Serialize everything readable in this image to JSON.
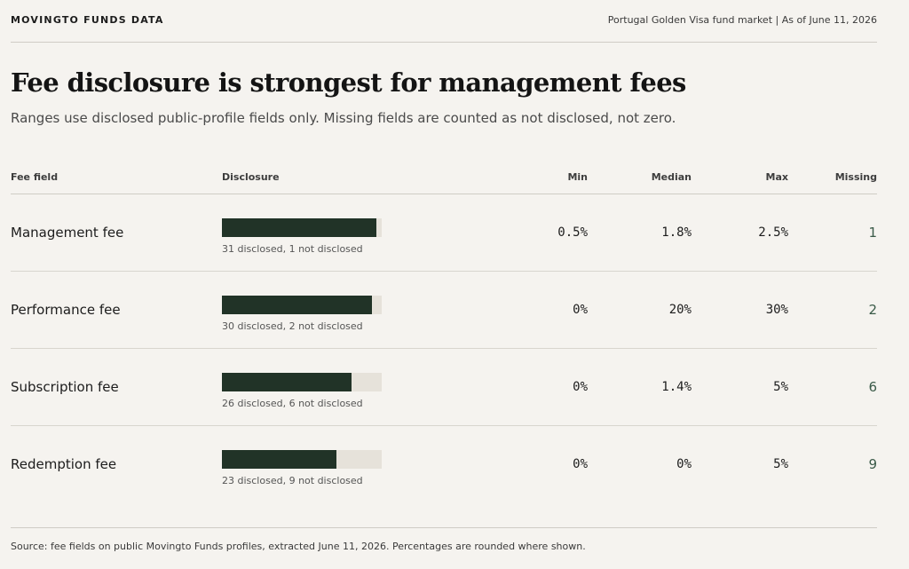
{
  "header": {
    "brand": "MOVINGTO FUNDS DATA",
    "meta": "Portugal Golden Visa fund market | As of June 11, 2026"
  },
  "title": "Fee disclosure is strongest for management fees",
  "subtitle": "Ranges use disclosed public-profile fields only. Missing fields are counted as not disclosed, not zero.",
  "columns": {
    "field": "Fee field",
    "disclosure": "Disclosure",
    "min": "Min",
    "median": "Median",
    "max": "Max",
    "missing": "Missing"
  },
  "chart_data": {
    "type": "table",
    "total_funds": 32,
    "rows": [
      {
        "field": "Management fee",
        "disclosed": 31,
        "not_disclosed": 1,
        "note": "31 disclosed, 1 not disclosed",
        "min": "0.5%",
        "median": "1.8%",
        "max": "2.5%",
        "missing": "1"
      },
      {
        "field": "Performance fee",
        "disclosed": 30,
        "not_disclosed": 2,
        "note": "30 disclosed, 2 not disclosed",
        "min": "0%",
        "median": "20%",
        "max": "30%",
        "missing": "2"
      },
      {
        "field": "Subscription fee",
        "disclosed": 26,
        "not_disclosed": 6,
        "note": "26 disclosed, 6 not disclosed",
        "min": "0%",
        "median": "1.4%",
        "max": "5%",
        "missing": "6"
      },
      {
        "field": "Redemption fee",
        "disclosed": 23,
        "not_disclosed": 9,
        "note": "23 disclosed, 9 not disclosed",
        "min": "0%",
        "median": "0%",
        "max": "5%",
        "missing": "9"
      }
    ],
    "colors": {
      "disclosed": "#213327",
      "not_disclosed": "#e6e2da",
      "missing_text": "#3a5a48"
    }
  },
  "footer": "Source: fee fields on public Movingto Funds profiles, extracted June 11, 2026. Percentages are rounded where shown."
}
